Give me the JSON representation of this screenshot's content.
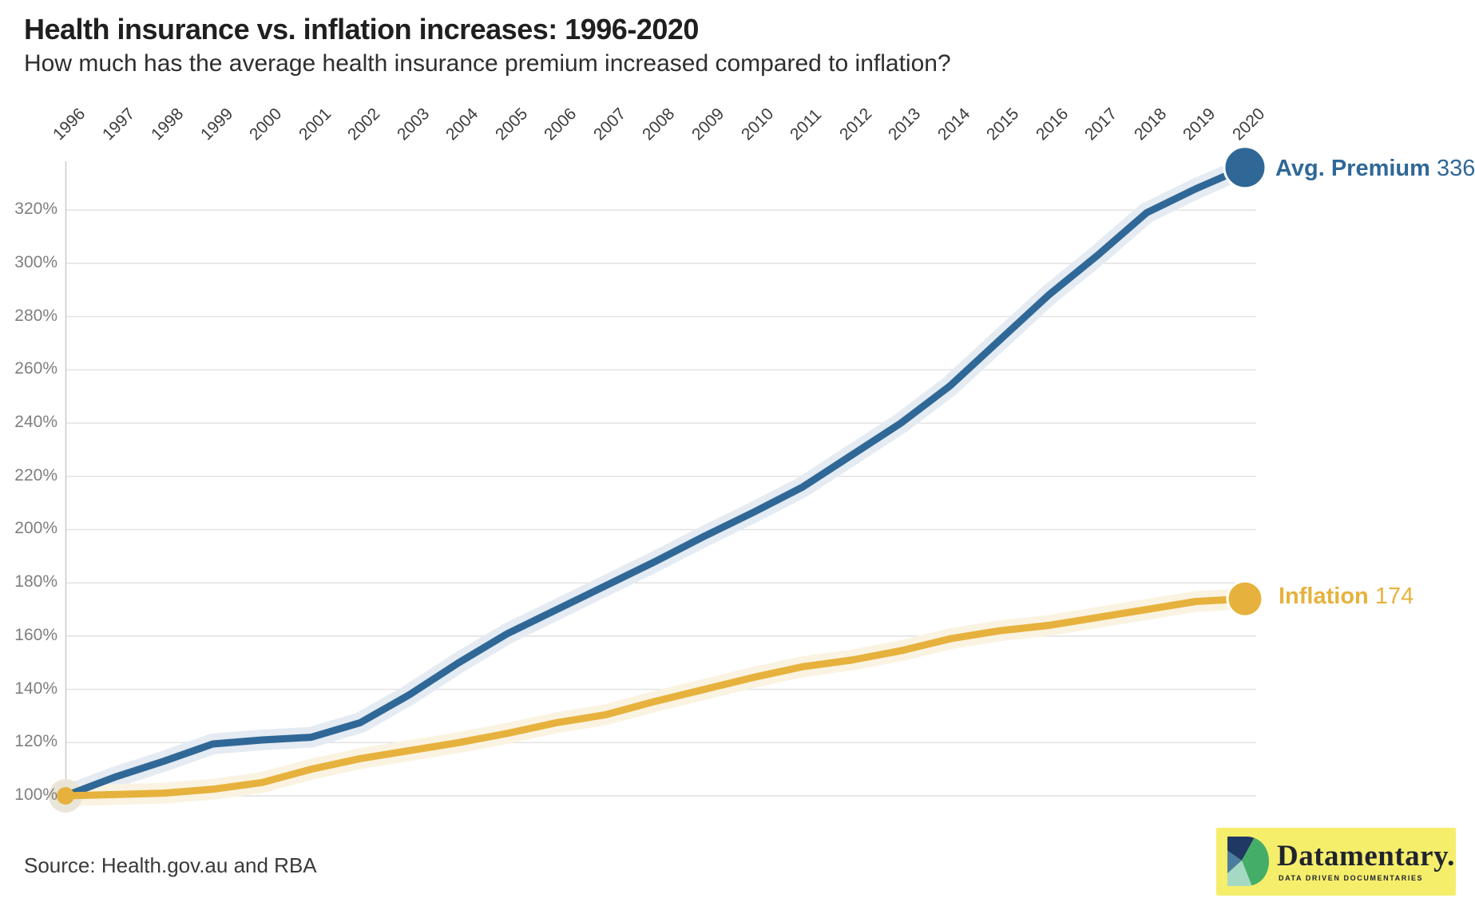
{
  "header": {
    "title": "Health insurance vs. inflation increases: 1996-2020",
    "subtitle": "How much has the average health insurance premium increased compared to inflation?"
  },
  "source": {
    "text": "Source: Health.gov.au and RBA"
  },
  "logo": {
    "name": "Datamentary.",
    "tagline": "DATA DRIVEN DOCUMENTARIES",
    "colors": {
      "background": "#F5EE6B",
      "navy": "#1F3864",
      "green": "#44AE68",
      "steel": "#4A7D9E",
      "mint": "#A5D9C4",
      "text": "#20242F"
    }
  },
  "chart_data": {
    "type": "line",
    "title": "Health insurance vs. inflation increases: 1996-2020",
    "subtitle": "How much has the average health insurance premium increased compared to inflation?",
    "x": [
      1996,
      1997,
      1998,
      1999,
      2000,
      2001,
      2002,
      2003,
      2004,
      2005,
      2006,
      2007,
      2008,
      2009,
      2010,
      2011,
      2012,
      2013,
      2014,
      2015,
      2016,
      2017,
      2018,
      2019,
      2020
    ],
    "series": [
      {
        "name": "Avg. Premium",
        "end_value": "336",
        "color": "#2F6897",
        "halo_color": "#E5EBF2",
        "values": [
          100,
          107,
          113,
          119.5,
          121,
          122,
          127.5,
          138,
          150,
          161,
          170,
          179,
          188,
          197.5,
          206.5,
          216,
          228,
          240,
          254,
          271,
          288,
          303,
          319,
          328,
          336
        ]
      },
      {
        "name": "Inflation",
        "end_value": "174",
        "color": "#E6B23D",
        "halo_color": "#FAF3E1",
        "values": [
          100,
          100.5,
          101,
          102.5,
          105,
          110,
          114,
          117,
          120,
          123.5,
          127.5,
          130.5,
          135.5,
          140,
          144.5,
          148.5,
          151,
          154.5,
          159,
          162,
          164,
          167,
          170,
          173,
          174
        ]
      }
    ],
    "y_ticks": [
      100,
      120,
      140,
      160,
      180,
      200,
      220,
      240,
      260,
      280,
      300,
      320
    ],
    "y_tick_suffix": "%",
    "ylim": [
      100,
      340
    ],
    "grid": true,
    "x_axis_position": "top",
    "legend_position": "line-end",
    "grid_color": "#E1E1E1",
    "axis_color": "#CFCFCF",
    "start_halo_color": "#E9E5D8",
    "dot_outline_color": "#FFFFFF"
  }
}
